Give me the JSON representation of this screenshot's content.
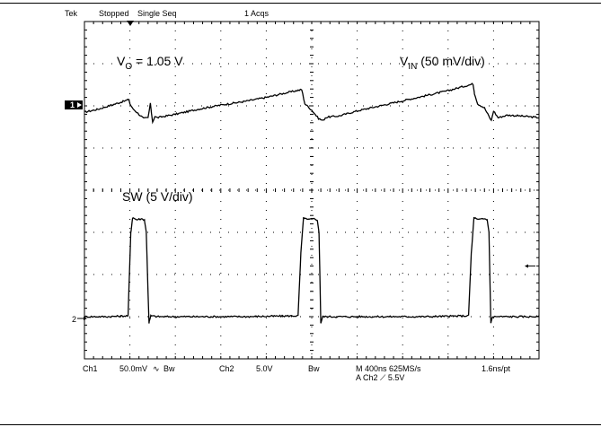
{
  "top_bar": {
    "brand": "Tek",
    "status": "Stopped",
    "mode": "Single Seq",
    "acquisitions": "1 Acqs"
  },
  "bottom_bar": {
    "ch1_label": "Ch1",
    "ch1_scale": "50.0mV",
    "ch1_coupling_symbol": "∿",
    "ch1_bw": "Bw",
    "ch2_label": "Ch2",
    "ch2_scale": "5.0V",
    "ch2_bw": "Bw",
    "timebase": "M 400ns 625MS/s",
    "trigger": "A  Ch2  ⟋  5.5V",
    "resolution": "1.6ns/pt"
  },
  "chart_data": {
    "type": "line",
    "divisions": {
      "x": 10,
      "y": 8
    },
    "x_unit": "div",
    "y_unit": "div",
    "grid": true,
    "annotations": {
      "vout": {
        "v": "V",
        "sub": "O",
        "rest": " = 1.05 V"
      },
      "vin": {
        "v": "V",
        "sub": "IN",
        "rest": " (50 mV/div)"
      },
      "sw": "SW (5 V/div)"
    },
    "channel_markers": {
      "ch1": "1",
      "ch2": "2"
    },
    "series": [
      {
        "name": "VIN",
        "x": [
          0,
          0.3,
          0.6,
          0.9,
          0.98,
          1.0,
          1.05,
          1.15,
          1.3,
          1.4,
          1.45,
          1.5,
          1.55,
          1.6,
          1.7,
          2.0,
          2.5,
          3.0,
          3.5,
          4.0,
          4.4,
          4.75,
          4.78,
          4.85,
          5.0,
          5.15,
          5.25,
          5.3,
          5.4,
          5.6,
          6.0,
          6.5,
          7.0,
          7.5,
          8.0,
          8.3,
          8.55,
          8.58,
          8.65,
          8.8,
          8.95,
          9.0,
          9.1,
          9.3,
          9.6,
          10.0
        ],
        "y": [
          5.85,
          5.92,
          6.02,
          6.12,
          6.15,
          6.05,
          5.95,
          5.85,
          5.7,
          5.72,
          6.05,
          5.62,
          5.75,
          5.72,
          5.74,
          5.8,
          5.92,
          6.02,
          6.1,
          6.2,
          6.3,
          6.38,
          6.38,
          6.05,
          5.9,
          5.7,
          5.65,
          5.72,
          5.74,
          5.76,
          5.88,
          6.0,
          6.12,
          6.24,
          6.36,
          6.45,
          6.52,
          6.3,
          6.05,
          5.95,
          5.65,
          5.88,
          5.72,
          5.78,
          5.76,
          5.72
        ]
      },
      {
        "name": "SW",
        "x": [
          0,
          0.5,
          0.96,
          1.02,
          1.06,
          1.15,
          1.25,
          1.32,
          1.36,
          1.42,
          1.46,
          1.6,
          2.5,
          3.5,
          4.7,
          4.76,
          4.82,
          4.9,
          5.05,
          5.12,
          5.16,
          5.2,
          5.24,
          5.4,
          6.5,
          7.5,
          8.45,
          8.51,
          8.57,
          8.65,
          8.8,
          8.86,
          8.9,
          8.94,
          8.98,
          9.1,
          10.0
        ],
        "y": [
          1.0,
          1.0,
          1.02,
          3.0,
          3.35,
          3.3,
          3.32,
          3.3,
          3.0,
          0.85,
          1.02,
          1.0,
          1.0,
          1.0,
          1.02,
          2.5,
          3.35,
          3.3,
          3.32,
          3.3,
          3.0,
          0.85,
          1.0,
          1.0,
          1.0,
          1.0,
          1.02,
          2.5,
          3.35,
          3.3,
          3.32,
          3.3,
          3.0,
          0.85,
          1.0,
          1.0,
          1.0
        ]
      }
    ],
    "marker_right_arrow_level_div": 2.2
  }
}
